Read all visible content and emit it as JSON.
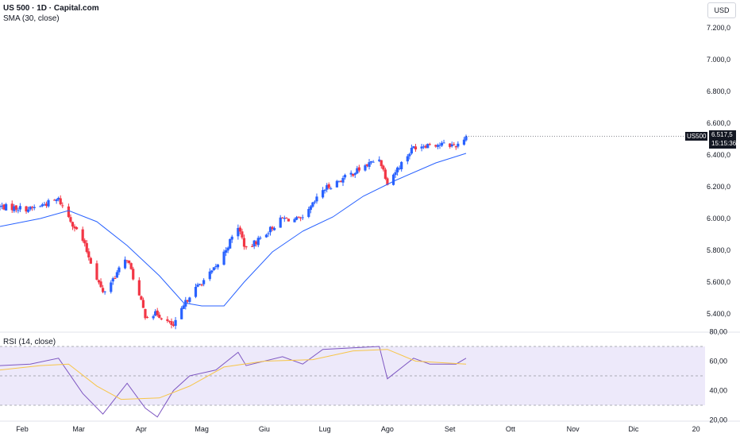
{
  "header": {
    "symbol_title": "US 500 · 1D · Capital.com",
    "indicator_sma": "SMA (30, close)",
    "indicator_rsi": "RSI (14, close)",
    "currency": "USD"
  },
  "price_tag": {
    "symbol": "US500",
    "price": "6.517,5",
    "countdown": "15:15:36"
  },
  "colors": {
    "up": "#2962ff",
    "down": "#f23645",
    "sma": "#2962ff",
    "rsi": "#7e57c2",
    "rsi_ma": "#f7c548",
    "rsi_band": "#ede9fa",
    "grid": "#e0e3eb",
    "text": "#131722",
    "axis_text": "#787b86"
  },
  "chart_data": [
    {
      "type": "candlestick",
      "title": "US 500 · 1D · Capital.com",
      "x_tick_labels": [
        "Feb",
        "Mar",
        "Apr",
        "Mag",
        "Giu",
        "Lug",
        "Ago",
        "Set",
        "Ott",
        "Nov",
        "Dic",
        "20"
      ],
      "y_tick_labels": [
        "5.400,0",
        "5.600,0",
        "5.800,0",
        "6.000,0",
        "6.200,0",
        "6.400,0",
        "6.600,0",
        "6.800,0",
        "7.000,0",
        "7.200,0"
      ],
      "ylim": [
        5300,
        7300
      ],
      "last_price": 6517.5,
      "series": [
        {
          "name": "US 500",
          "type": "candlestick",
          "trend_waypoints": [
            {
              "date": "2025-01-21",
              "close": 6075
            },
            {
              "date": "2025-02-05",
              "close": 6060
            },
            {
              "date": "2025-02-19",
              "close": 6120
            },
            {
              "date": "2025-03-03",
              "close": 5860
            },
            {
              "date": "2025-03-13",
              "close": 5530
            },
            {
              "date": "2025-03-25",
              "close": 5750
            },
            {
              "date": "2025-04-03",
              "close": 5390
            },
            {
              "date": "2025-04-09",
              "close": 5400
            },
            {
              "date": "2025-04-17",
              "close": 5320
            },
            {
              "date": "2025-04-25",
              "close": 5520
            },
            {
              "date": "2025-05-08",
              "close": 5690
            },
            {
              "date": "2025-05-19",
              "close": 5950
            },
            {
              "date": "2025-05-23",
              "close": 5800
            },
            {
              "date": "2025-06-10",
              "close": 6000
            },
            {
              "date": "2025-06-20",
              "close": 5990
            },
            {
              "date": "2025-06-30",
              "close": 6180
            },
            {
              "date": "2025-07-28",
              "close": 6380
            },
            {
              "date": "2025-08-01",
              "close": 6230
            },
            {
              "date": "2025-08-14",
              "close": 6450
            },
            {
              "date": "2025-08-22",
              "close": 6470
            },
            {
              "date": "2025-09-04",
              "close": 6460
            },
            {
              "date": "2025-09-09",
              "close": 6517.5
            }
          ]
        },
        {
          "name": "SMA (30, close)",
          "type": "line",
          "points": [
            {
              "date": "2025-01-21",
              "value": 5950
            },
            {
              "date": "2025-02-10",
              "value": 6000
            },
            {
              "date": "2025-02-24",
              "value": 6050
            },
            {
              "date": "2025-03-10",
              "value": 5980
            },
            {
              "date": "2025-03-25",
              "value": 5830
            },
            {
              "date": "2025-04-10",
              "value": 5640
            },
            {
              "date": "2025-04-22",
              "value": 5470
            },
            {
              "date": "2025-05-01",
              "value": 5450
            },
            {
              "date": "2025-05-12",
              "value": 5450
            },
            {
              "date": "2025-05-22",
              "value": 5600
            },
            {
              "date": "2025-06-05",
              "value": 5790
            },
            {
              "date": "2025-06-20",
              "value": 5920
            },
            {
              "date": "2025-07-05",
              "value": 6010
            },
            {
              "date": "2025-07-20",
              "value": 6140
            },
            {
              "date": "2025-08-05",
              "value": 6240
            },
            {
              "date": "2025-08-25",
              "value": 6350
            },
            {
              "date": "2025-09-09",
              "value": 6410
            }
          ]
        }
      ]
    },
    {
      "type": "line",
      "title": "RSI (14, close)",
      "y_tick_labels": [
        "20,00",
        "40,00",
        "60,00",
        "80,00"
      ],
      "ylim": [
        17,
        81
      ],
      "bands": [
        30,
        50,
        70
      ],
      "series": [
        {
          "name": "RSI (14, close)",
          "points": [
            {
              "date": "2025-01-21",
              "value": 57
            },
            {
              "date": "2025-02-05",
              "value": 58
            },
            {
              "date": "2025-02-19",
              "value": 62
            },
            {
              "date": "2025-03-03",
              "value": 38
            },
            {
              "date": "2025-03-13",
              "value": 24
            },
            {
              "date": "2025-03-25",
              "value": 45
            },
            {
              "date": "2025-04-03",
              "value": 28
            },
            {
              "date": "2025-04-09",
              "value": 22
            },
            {
              "date": "2025-04-17",
              "value": 40
            },
            {
              "date": "2025-04-25",
              "value": 50
            },
            {
              "date": "2025-05-08",
              "value": 54
            },
            {
              "date": "2025-05-19",
              "value": 66
            },
            {
              "date": "2025-05-23",
              "value": 57
            },
            {
              "date": "2025-06-10",
              "value": 63
            },
            {
              "date": "2025-06-20",
              "value": 58
            },
            {
              "date": "2025-06-30",
              "value": 68
            },
            {
              "date": "2025-07-28",
              "value": 70
            },
            {
              "date": "2025-08-01",
              "value": 48
            },
            {
              "date": "2025-08-14",
              "value": 62
            },
            {
              "date": "2025-08-22",
              "value": 58
            },
            {
              "date": "2025-09-04",
              "value": 58
            },
            {
              "date": "2025-09-09",
              "value": 62
            }
          ]
        },
        {
          "name": "RSI-based MA",
          "points": [
            {
              "date": "2025-01-21",
              "value": 54
            },
            {
              "date": "2025-02-10",
              "value": 57
            },
            {
              "date": "2025-02-24",
              "value": 58
            },
            {
              "date": "2025-03-10",
              "value": 43
            },
            {
              "date": "2025-03-22",
              "value": 34
            },
            {
              "date": "2025-04-10",
              "value": 35
            },
            {
              "date": "2025-04-25",
              "value": 43
            },
            {
              "date": "2025-05-12",
              "value": 56
            },
            {
              "date": "2025-06-01",
              "value": 60
            },
            {
              "date": "2025-06-25",
              "value": 61
            },
            {
              "date": "2025-07-15",
              "value": 67
            },
            {
              "date": "2025-08-01",
              "value": 68
            },
            {
              "date": "2025-08-15",
              "value": 60
            },
            {
              "date": "2025-09-09",
              "value": 58
            }
          ]
        }
      ]
    }
  ]
}
